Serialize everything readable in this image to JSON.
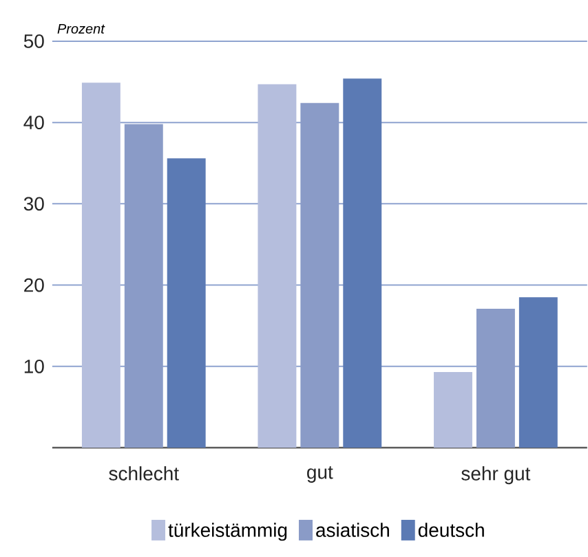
{
  "chart_data": {
    "type": "bar",
    "ylabel": "Prozent",
    "categories": [
      "schlecht",
      "gut",
      "sehr gut"
    ],
    "series": [
      {
        "name": "türkeistämmig",
        "color": "#b5bedd",
        "values": [
          44.9,
          44.7,
          9.3
        ]
      },
      {
        "name": "asiatisch",
        "color": "#8a9bc7",
        "values": [
          39.8,
          42.4,
          17.1
        ]
      },
      {
        "name": "deutsch",
        "color": "#5b7ab4",
        "values": [
          35.6,
          45.4,
          18.5
        ]
      }
    ],
    "ylim": [
      0,
      50
    ],
    "yticks": [
      10,
      20,
      30,
      40,
      50
    ],
    "grid": "y",
    "legend": "bottom"
  }
}
